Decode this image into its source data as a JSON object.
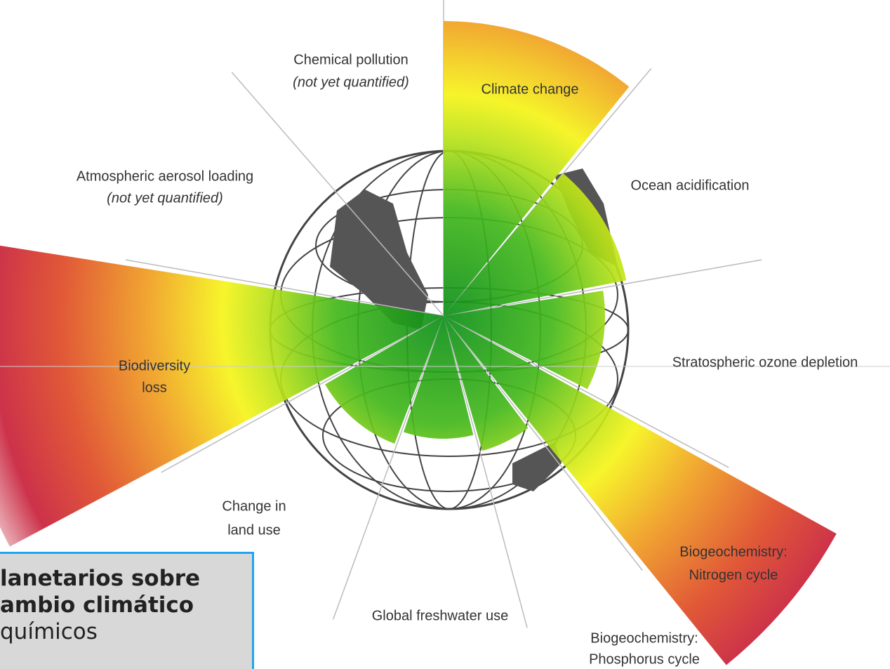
{
  "labels": {
    "chemical_pollution": [
      "Chemical pollution",
      "(not yet quantified)"
    ],
    "climate_change": [
      "Climate change"
    ],
    "aerosol": [
      "Atmospheric aerosol loading",
      "(not yet quantified)"
    ],
    "ocean": [
      "Ocean acidification"
    ],
    "ozone": [
      "Stratospheric ozone depletion"
    ],
    "biodiversity": [
      "Biodiversity",
      "loss"
    ],
    "land_use": [
      "Change in",
      "land use"
    ],
    "nitrogen": [
      "Biogeochemistry:",
      "Nitrogen cycle"
    ],
    "freshwater": [
      "Global freshwater use"
    ],
    "phosphorus": [
      "Biogeochemistry:",
      "Phosphorus cycle"
    ]
  },
  "box": {
    "lines": [
      "lanetarios sobre",
      "ambio climático",
      "químicos"
    ]
  }
}
